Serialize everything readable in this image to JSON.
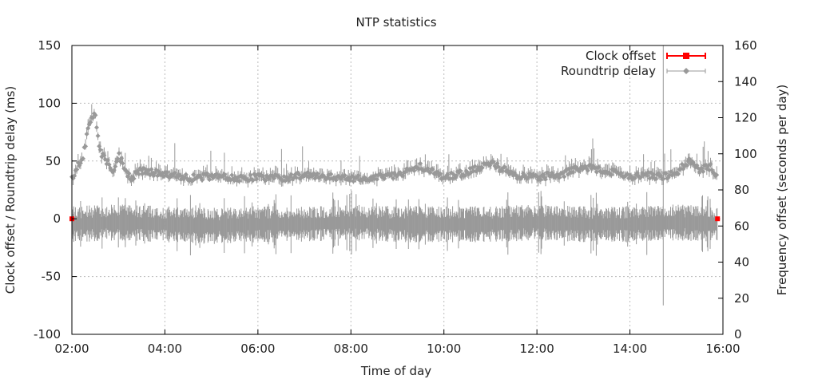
{
  "chart_data": {
    "type": "scatter",
    "title": "NTP statistics",
    "xlabel": "Time of day",
    "ylabel_left": "Clock offset / Roundtrip delay (ms)",
    "ylabel_right": "Frequency offset (seconds per day)",
    "xlim": [
      "02:00",
      "16:00"
    ],
    "ylim_left": [
      -100,
      150
    ],
    "ylim_right": [
      0,
      160
    ],
    "x_ticks": [
      "02:00",
      "04:00",
      "06:00",
      "08:00",
      "10:00",
      "12:00",
      "14:00",
      "16:00"
    ],
    "y_ticks_left": [
      "-100",
      "-50",
      "0",
      "50",
      "100",
      "150"
    ],
    "y_ticks_right": [
      "0",
      "20",
      "40",
      "60",
      "80",
      "100",
      "120",
      "140",
      "160"
    ],
    "grid": true,
    "legend_position": "top-right",
    "series": [
      {
        "name": "Clock offset",
        "axis": "left",
        "color": "#ff0000",
        "marker": "square",
        "x": [
          "02:00",
          "15:53"
        ],
        "y": [
          0,
          0
        ]
      },
      {
        "name": "Roundtrip delay",
        "axis": "left",
        "color": "#999999",
        "marker": "diamond",
        "x": [
          "02:00",
          "02:15",
          "02:20",
          "02:25",
          "02:30",
          "02:35",
          "02:45",
          "02:55",
          "03:00",
          "03:15",
          "03:30",
          "03:45",
          "04:00",
          "04:30",
          "05:00",
          "05:30",
          "06:00",
          "06:30",
          "07:00",
          "07:30",
          "08:00",
          "08:30",
          "09:00",
          "09:30",
          "10:00",
          "10:30",
          "11:00",
          "11:30",
          "12:00",
          "12:30",
          "13:00",
          "13:30",
          "14:00",
          "14:30",
          "14:40",
          "15:00",
          "15:15",
          "15:30",
          "15:45",
          "15:53"
        ],
        "y": [
          35,
          55,
          75,
          85,
          95,
          60,
          50,
          40,
          55,
          35,
          42,
          40,
          38,
          35,
          37,
          35,
          36,
          35,
          38,
          36,
          35,
          36,
          38,
          45,
          36,
          40,
          48,
          38,
          36,
          38,
          45,
          42,
          36,
          38,
          36,
          40,
          50,
          42,
          45,
          38
        ]
      }
    ],
    "frequency_series": {
      "axis": "right",
      "color": "#999999",
      "x": [
        "02:00",
        "03:00",
        "04:00",
        "05:00",
        "06:00",
        "07:00",
        "08:00",
        "09:00",
        "10:00",
        "11:00",
        "12:00",
        "13:00",
        "14:00",
        "15:00",
        "15:53"
      ],
      "y": [
        61,
        62,
        61,
        60,
        61,
        61,
        62,
        61,
        61,
        61,
        62,
        61,
        61,
        62,
        61
      ]
    }
  }
}
